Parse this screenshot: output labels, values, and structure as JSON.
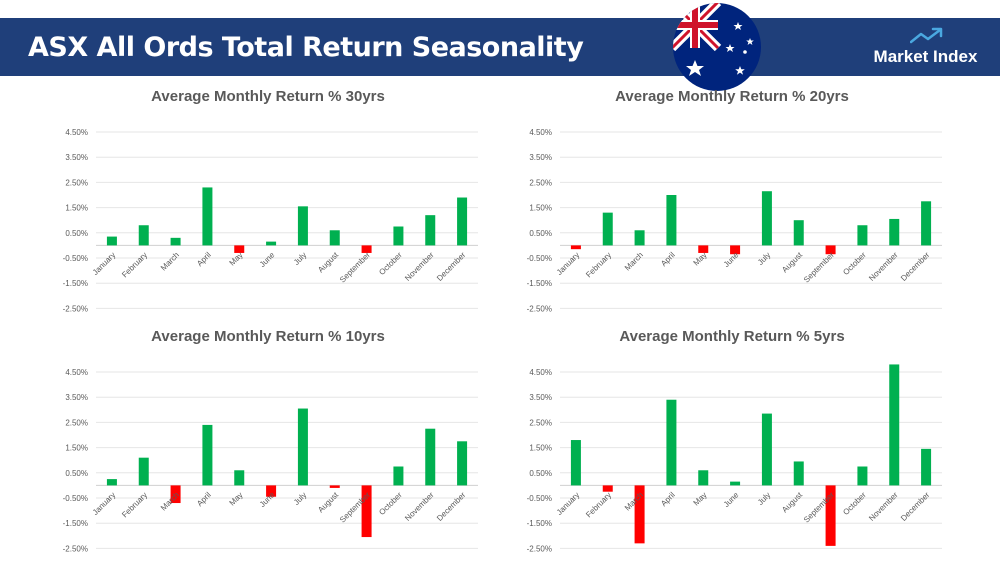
{
  "header": {
    "title": "ASX All Ords Total Return Seasonality",
    "brand": "Market Index",
    "logo_icon": "trend-up-arrow-icon",
    "flag_icon": "australia-flag-icon",
    "background_color": "#1f3f7a"
  },
  "colors": {
    "positive": "#00b050",
    "negative": "#ff0000",
    "grid": "#e6e6e6",
    "text": "#595959"
  },
  "chart_data": [
    {
      "type": "bar",
      "title": "Average Monthly Return % 30yrs",
      "categories": [
        "January",
        "February",
        "March",
        "April",
        "May",
        "June",
        "July",
        "August",
        "September",
        "October",
        "November",
        "December"
      ],
      "values": [
        0.35,
        0.8,
        0.3,
        2.3,
        -0.3,
        0.15,
        1.55,
        0.6,
        -0.3,
        0.75,
        1.2,
        1.9
      ],
      "yticks": [
        "4.50%",
        "3.50%",
        "2.50%",
        "1.50%",
        "0.50%",
        "-0.50%",
        "-1.50%",
        "-2.50%"
      ],
      "ylim": [
        -2.5,
        4.5
      ],
      "grid": true
    },
    {
      "type": "bar",
      "title": "Average Monthly Return % 20yrs",
      "categories": [
        "January",
        "February",
        "March",
        "April",
        "May",
        "June",
        "July",
        "August",
        "September",
        "October",
        "November",
        "December"
      ],
      "values": [
        -0.15,
        1.3,
        0.6,
        2.0,
        -0.3,
        -0.35,
        2.15,
        1.0,
        -0.35,
        0.8,
        1.05,
        1.75
      ],
      "yticks": [
        "4.50%",
        "3.50%",
        "2.50%",
        "1.50%",
        "0.50%",
        "-0.50%",
        "-1.50%",
        "-2.50%"
      ],
      "ylim": [
        -2.5,
        4.5
      ],
      "grid": true
    },
    {
      "type": "bar",
      "title": "Average Monthly Return % 10yrs",
      "categories": [
        "January",
        "February",
        "March",
        "April",
        "May",
        "June",
        "July",
        "August",
        "September",
        "October",
        "November",
        "December"
      ],
      "values": [
        0.25,
        1.1,
        -0.7,
        2.4,
        0.6,
        -0.45,
        3.05,
        -0.1,
        -2.05,
        0.75,
        2.25,
        1.75
      ],
      "yticks": [
        "4.50%",
        "3.50%",
        "2.50%",
        "1.50%",
        "0.50%",
        "-0.50%",
        "-1.50%",
        "-2.50%"
      ],
      "ylim": [
        -2.5,
        4.5
      ],
      "grid": true
    },
    {
      "type": "bar",
      "title": "Average Monthly Return % 5yrs",
      "categories": [
        "January",
        "February",
        "March",
        "April",
        "May",
        "June",
        "July",
        "August",
        "September",
        "October",
        "November",
        "December"
      ],
      "values": [
        1.8,
        -0.25,
        -2.3,
        3.4,
        0.6,
        0.15,
        2.85,
        0.95,
        -2.4,
        0.75,
        4.8,
        1.45
      ],
      "yticks": [
        "4.50%",
        "3.50%",
        "2.50%",
        "1.50%",
        "0.50%",
        "-0.50%",
        "-1.50%",
        "-2.50%"
      ],
      "ylim": [
        -2.5,
        4.5
      ],
      "grid": true
    }
  ]
}
